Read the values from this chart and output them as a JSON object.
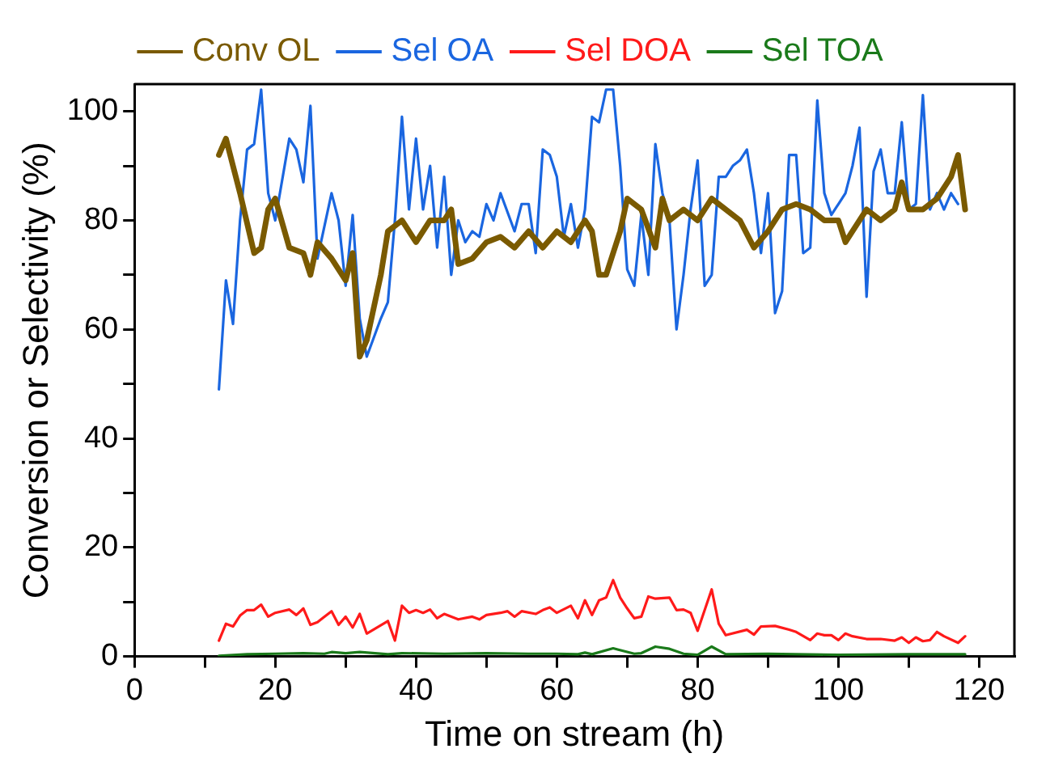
{
  "chart_data": {
    "type": "line",
    "xlabel": "Time on stream (h)",
    "ylabel": "Conversion or Selectivity (%)",
    "xlim": [
      0,
      125
    ],
    "xticks": [
      0,
      {
        "value": 10,
        "label": null
      },
      20,
      {
        "value": 30,
        "label": null
      },
      40,
      {
        "value": 50,
        "label": null
      },
      60,
      {
        "value": 70,
        "label": null
      },
      80,
      {
        "value": 90,
        "label": null
      },
      100,
      {
        "value": 110,
        "label": null
      },
      120
    ],
    "ylim": [
      0,
      105
    ],
    "yticks": [
      0,
      {
        "value": 10,
        "label": null
      },
      20,
      {
        "value": 30,
        "label": null
      },
      40,
      {
        "value": 50,
        "label": null
      },
      60,
      {
        "value": 70,
        "label": null
      },
      80,
      {
        "value": 90,
        "label": null
      },
      100
    ],
    "grid": false,
    "legend": "top",
    "marker": "none",
    "line_style": "solid",
    "series": [
      {
        "name": "Conv OL",
        "color": "#7a5a00",
        "x": [
          12,
          13,
          15,
          17,
          18,
          19,
          20,
          22,
          24,
          25,
          26,
          28,
          29,
          30,
          31,
          32,
          33,
          35,
          36,
          38,
          40,
          42,
          44,
          45,
          46,
          48,
          50,
          52,
          54,
          56,
          58,
          60,
          62,
          64,
          65,
          66,
          67,
          69,
          70,
          72,
          74,
          75,
          76,
          78,
          80,
          82,
          84,
          86,
          88,
          90,
          92,
          94,
          96,
          98,
          100,
          101,
          103,
          104,
          106,
          108,
          109,
          110,
          112,
          114,
          116,
          117,
          118
        ],
        "values": [
          92,
          95,
          85,
          74,
          75,
          82,
          84,
          75,
          74,
          70,
          76,
          73,
          71,
          69,
          74,
          55,
          58,
          70,
          78,
          80,
          76,
          80,
          80,
          82,
          72,
          73,
          76,
          77,
          75,
          78,
          75,
          78,
          76,
          80,
          78,
          70,
          70,
          78,
          84,
          82,
          75,
          84,
          80,
          82,
          80,
          84,
          82,
          80,
          75,
          78,
          82,
          83,
          82,
          80,
          80,
          76,
          80,
          82,
          80,
          82,
          87,
          82,
          82,
          84,
          88,
          92,
          82
        ]
      },
      {
        "name": "Sel OA",
        "color": "#1a66e0",
        "x": [
          12,
          13,
          14,
          15,
          16,
          17,
          18,
          19,
          20,
          22,
          23,
          24,
          25,
          26,
          28,
          29,
          30,
          31,
          32,
          33,
          35,
          36,
          37,
          38,
          39,
          40,
          41,
          42,
          43,
          44,
          45,
          46,
          47,
          48,
          49,
          50,
          51,
          52,
          54,
          55,
          56,
          57,
          58,
          59,
          60,
          61,
          62,
          63,
          64,
          65,
          66,
          67,
          68,
          69,
          70,
          71,
          72,
          73,
          74,
          75,
          76,
          77,
          78,
          79,
          80,
          81,
          82,
          83,
          84,
          85,
          86,
          87,
          88,
          89,
          90,
          91,
          92,
          93,
          94,
          95,
          96,
          97,
          98,
          99,
          100,
          101,
          102,
          103,
          104,
          105,
          106,
          107,
          108,
          109,
          110,
          111,
          112,
          113,
          114,
          115,
          116,
          117
        ],
        "values": [
          49,
          69,
          61,
          80,
          93,
          94,
          104,
          85,
          80,
          95,
          93,
          87,
          101,
          73,
          85,
          80,
          68,
          81,
          62,
          55,
          62,
          65,
          80,
          99,
          82,
          95,
          82,
          90,
          75,
          88,
          70,
          80,
          76,
          78,
          77,
          83,
          80,
          85,
          78,
          83,
          83,
          74,
          93,
          92,
          88,
          77,
          83,
          75,
          82,
          99,
          98,
          104,
          104,
          90,
          71,
          68,
          81,
          70,
          94,
          85,
          80,
          60,
          70,
          82,
          91,
          68,
          70,
          88,
          88,
          90,
          91,
          93,
          85,
          74,
          85,
          63,
          67,
          92,
          92,
          74,
          75,
          102,
          85,
          81,
          83,
          85,
          90,
          97,
          66,
          89,
          93,
          85,
          85,
          98,
          82,
          83,
          103,
          82,
          85,
          82,
          85,
          83
        ]
      },
      {
        "name": "Sel DOA",
        "color": "#ff1a1a",
        "x": [
          12,
          13,
          14,
          15,
          16,
          17,
          18,
          19,
          20,
          22,
          23,
          24,
          25,
          26,
          28,
          29,
          30,
          31,
          32,
          33,
          36,
          37,
          38,
          39,
          40,
          41,
          42,
          43,
          44,
          46,
          48,
          49,
          50,
          52,
          53,
          54,
          55,
          57,
          58,
          59,
          60,
          62,
          63,
          64,
          65,
          66,
          67,
          68,
          69,
          70,
          71,
          72,
          73,
          74,
          76,
          77,
          78,
          79,
          80,
          82,
          83,
          84,
          87,
          88,
          89,
          91,
          93,
          94,
          96,
          97,
          98,
          99,
          100,
          101,
          102,
          104,
          106,
          108,
          109,
          110,
          111,
          112,
          113,
          114,
          115,
          117,
          118
        ],
        "values": [
          2.9,
          6,
          5.5,
          7.5,
          8.5,
          8.5,
          9.5,
          7.3,
          8,
          8.6,
          7.6,
          8.8,
          5.8,
          6.3,
          8.3,
          5.8,
          7.3,
          5.3,
          7.8,
          4.2,
          6.5,
          2.9,
          9.3,
          8,
          8.5,
          8,
          8.6,
          7,
          7.8,
          6.8,
          7.3,
          6.8,
          7.6,
          8,
          8.3,
          7.3,
          8.3,
          7.8,
          8.5,
          9,
          8,
          9.3,
          7,
          10.3,
          7.6,
          10.3,
          10.8,
          14,
          10.8,
          8.8,
          7,
          7.3,
          11,
          10.6,
          10.8,
          8.5,
          8.6,
          8,
          4.7,
          12.3,
          6,
          3.9,
          4.9,
          4,
          5.5,
          5.6,
          4.9,
          4.5,
          3,
          4.2,
          3.9,
          3.9,
          3,
          4.2,
          3.7,
          3.2,
          3.2,
          2.9,
          3.5,
          2.5,
          3.5,
          2.8,
          3,
          4.5,
          3.7,
          2.5,
          3.7
        ]
      },
      {
        "name": "Sel TOA",
        "color": "#1a7a1a",
        "x": [
          12,
          16,
          20,
          24,
          27,
          28,
          30,
          32,
          36,
          38,
          44,
          50,
          56,
          60,
          63,
          64,
          65,
          68,
          71,
          72,
          74,
          76,
          78,
          80,
          82,
          84,
          90,
          100,
          110,
          118
        ],
        "values": [
          0.1,
          0.4,
          0.5,
          0.6,
          0.5,
          0.8,
          0.6,
          0.8,
          0.4,
          0.6,
          0.5,
          0.6,
          0.5,
          0.5,
          0.4,
          0.7,
          0.4,
          1.5,
          0.5,
          0.6,
          1.8,
          1.4,
          0.5,
          0.3,
          1.8,
          0.4,
          0.5,
          0.3,
          0.4,
          0.4
        ]
      }
    ]
  }
}
